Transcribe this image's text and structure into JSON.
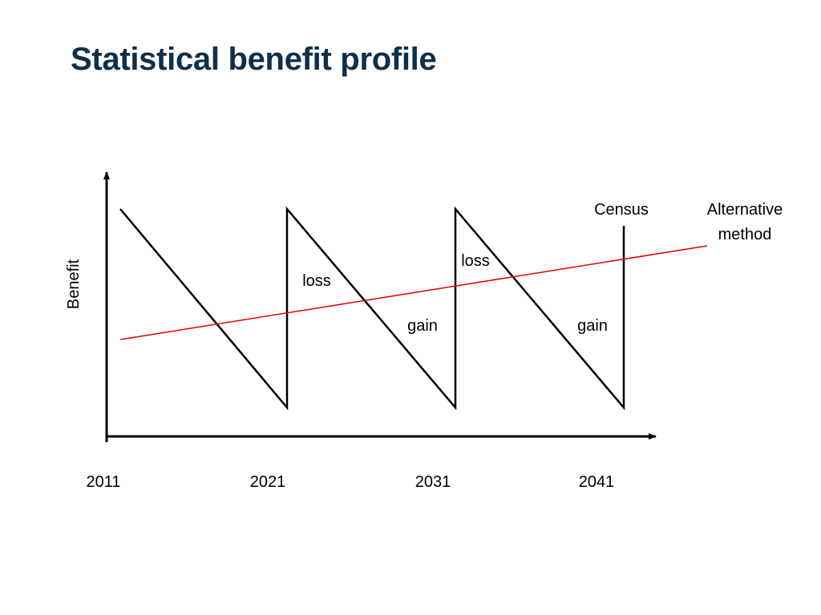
{
  "slide": {
    "title": "Statistical benefit profile"
  },
  "diagram": {
    "y_axis_label": "Benefit",
    "x_ticks": [
      "2011",
      "2021",
      "2031",
      "2041"
    ],
    "census_label": "Census",
    "alternative_label_line1": "Alternative",
    "alternative_label_line2": "method",
    "region_labels": [
      "loss",
      "loss",
      "gain",
      "gain"
    ],
    "colors": {
      "title": "#0e2f4a",
      "census_line": "#000000",
      "alternative_line": "#e00000",
      "axes": "#000000"
    }
  }
}
